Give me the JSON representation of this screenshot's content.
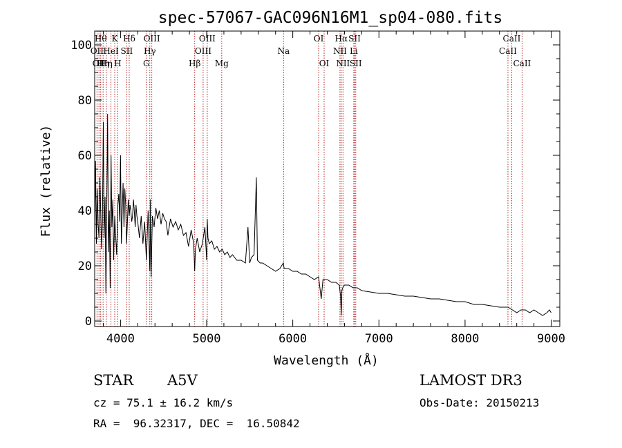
{
  "chart_data": {
    "type": "line",
    "title": "spec-57067-GAC096N16M1_sp04-080.fits",
    "xlabel": "Wavelength (Å)",
    "ylabel": "Flux (relative)",
    "xlim": [
      3700,
      9100
    ],
    "ylim": [
      -2,
      105
    ],
    "xticks": [
      4000,
      5000,
      6000,
      7000,
      8000,
      9000
    ],
    "yticks": [
      0,
      20,
      40,
      60,
      80,
      100
    ],
    "spectrum": {
      "x": [
        3700,
        3710,
        3720,
        3730,
        3740,
        3750,
        3760,
        3770,
        3780,
        3790,
        3800,
        3810,
        3820,
        3830,
        3840,
        3850,
        3860,
        3870,
        3880,
        3890,
        3900,
        3910,
        3920,
        3933,
        3945,
        3955,
        3968,
        3980,
        3990,
        4000,
        4010,
        4020,
        4030,
        4040,
        4050,
        4060,
        4070,
        4080,
        4090,
        4101,
        4110,
        4120,
        4130,
        4140,
        4150,
        4160,
        4170,
        4180,
        4190,
        4200,
        4220,
        4240,
        4260,
        4280,
        4300,
        4320,
        4340,
        4345,
        4355,
        4370,
        4390,
        4410,
        4430,
        4450,
        4470,
        4490,
        4510,
        4530,
        4550,
        4580,
        4610,
        4640,
        4670,
        4700,
        4730,
        4760,
        4790,
        4820,
        4850,
        4861,
        4870,
        4890,
        4920,
        4950,
        4980,
        5000,
        5007,
        5015,
        5030,
        5060,
        5090,
        5120,
        5150,
        5180,
        5210,
        5240,
        5270,
        5300,
        5350,
        5400,
        5450,
        5480,
        5500,
        5520,
        5550,
        5577,
        5590,
        5620,
        5650,
        5700,
        5750,
        5800,
        5850,
        5890,
        5900,
        5950,
        6000,
        6050,
        6100,
        6150,
        6200,
        6250,
        6300,
        6330,
        6350,
        6400,
        6450,
        6500,
        6540,
        6555,
        6563,
        6570,
        6580,
        6600,
        6650,
        6700,
        6750,
        6800,
        6900,
        7000,
        7100,
        7200,
        7300,
        7400,
        7500,
        7600,
        7700,
        7800,
        7900,
        8000,
        8100,
        8200,
        8300,
        8400,
        8500,
        8550,
        8600,
        8650,
        8700,
        8750,
        8800,
        8850,
        8900,
        8950,
        8980,
        9000
      ],
      "y": [
        32,
        58,
        28,
        48,
        35,
        30,
        52,
        40,
        26,
        36,
        72,
        30,
        45,
        10,
        38,
        75,
        25,
        40,
        12,
        60,
        34,
        44,
        22,
        38,
        30,
        24,
        42,
        46,
        36,
        60,
        28,
        40,
        50,
        34,
        48,
        42,
        28,
        36,
        44,
        38,
        42,
        40,
        36,
        38,
        44,
        40,
        34,
        42,
        38,
        36,
        30,
        38,
        28,
        36,
        22,
        40,
        18,
        44,
        16,
        38,
        34,
        41,
        37,
        40,
        35,
        39,
        37,
        36,
        31,
        37,
        34,
        36,
        33,
        35,
        31,
        32,
        27,
        33,
        28,
        18,
        26,
        30,
        25,
        28,
        34,
        22,
        37,
        30,
        28,
        29,
        26,
        27,
        25,
        26,
        24,
        25,
        23,
        24,
        22,
        22,
        21,
        34,
        21,
        23,
        24,
        52,
        22,
        21,
        21,
        20,
        19,
        18,
        19,
        21,
        19,
        19,
        18,
        18,
        17,
        17,
        16,
        15,
        16,
        8,
        15,
        15,
        14,
        14,
        13,
        9,
        2,
        11,
        12,
        13,
        13,
        12,
        12,
        11,
        10.5,
        10,
        10,
        9.5,
        9,
        9,
        8.5,
        8,
        8,
        7.5,
        7,
        7,
        6,
        6,
        5.5,
        5,
        5,
        4,
        3,
        4,
        4,
        3,
        4,
        3,
        2,
        3,
        4,
        3
      ]
    },
    "spectral_lines": [
      {
        "wavelength": 3727,
        "label": "OII",
        "row": 1
      },
      {
        "wavelength": 3750,
        "label": "OII",
        "row": 2
      },
      {
        "wavelength": 3770,
        "label": "Hθ",
        "row": 0
      },
      {
        "wavelength": 3798,
        "label": "Hη",
        "row": 2
      },
      {
        "wavelength": 3835,
        "label": "Hη",
        "row": 2
      },
      {
        "wavelength": 3889,
        "label": "HeI",
        "row": 1
      },
      {
        "wavelength": 3933,
        "label": "K",
        "row": 0
      },
      {
        "wavelength": 3968,
        "label": "H",
        "row": 2
      },
      {
        "wavelength": 4072,
        "label": "SII",
        "row": 1
      },
      {
        "wavelength": 4101,
        "label": "Hδ",
        "row": 0
      },
      {
        "wavelength": 4300,
        "label": "G",
        "row": 2
      },
      {
        "wavelength": 4340,
        "label": "Hγ",
        "row": 1
      },
      {
        "wavelength": 4363,
        "label": "OIII",
        "row": 0
      },
      {
        "wavelength": 4861,
        "label": "Hβ",
        "row": 2
      },
      {
        "wavelength": 4959,
        "label": "OIII",
        "row": 1
      },
      {
        "wavelength": 5007,
        "label": "OIII",
        "row": 0
      },
      {
        "wavelength": 5175,
        "label": "Mg",
        "row": 2
      },
      {
        "wavelength": 5893,
        "label": "Na",
        "row": 1
      },
      {
        "wavelength": 6300,
        "label": "OI",
        "row": 0
      },
      {
        "wavelength": 6364,
        "label": "OI",
        "row": 2
      },
      {
        "wavelength": 6548,
        "label": "NII",
        "row": 1
      },
      {
        "wavelength": 6563,
        "label": "Hα",
        "row": 0
      },
      {
        "wavelength": 6583,
        "label": "NII",
        "row": 2
      },
      {
        "wavelength": 6708,
        "label": "Li",
        "row": 1
      },
      {
        "wavelength": 6717,
        "label": "SII",
        "row": 0
      },
      {
        "wavelength": 6731,
        "label": "SII",
        "row": 2
      },
      {
        "wavelength": 8498,
        "label": "CaII",
        "row": 1
      },
      {
        "wavelength": 8542,
        "label": "CaII",
        "row": 0
      },
      {
        "wavelength": 8662,
        "label": "CaII",
        "row": 2
      }
    ]
  },
  "info": {
    "class": "STAR",
    "subclass": "A5V",
    "survey": "LAMOST DR3",
    "cz": "cz = 75.1 ± 16.2 km/s",
    "obs_date": "Obs-Date: 20150213",
    "coords": "RA =  96.32317, DEC =  16.50842"
  },
  "colors": {
    "spectrum": "#000000",
    "line_marker": "#b22222",
    "frame": "#000000"
  }
}
